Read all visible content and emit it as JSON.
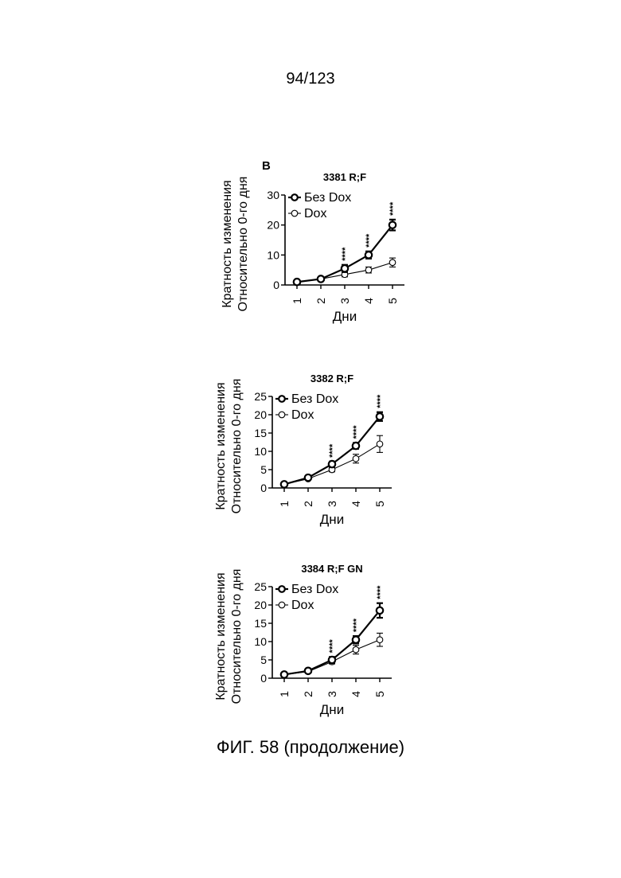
{
  "page": {
    "number": "94/123",
    "panel_letter": "B",
    "caption": "ФИГ. 58 (продолжение)"
  },
  "chart_data": [
    {
      "type": "line",
      "title": "3381 R;F",
      "xlabel": "Дни",
      "ylabel_line1": "Кратность изменения",
      "ylabel_line2": "Относительно 0-го дня",
      "x": [
        1,
        2,
        3,
        4,
        5
      ],
      "xlim": [
        0.5,
        5.5
      ],
      "ylim": [
        0,
        30
      ],
      "yticks": [
        0,
        10,
        20,
        30
      ],
      "series": [
        {
          "name": "Без Dox",
          "marker": "open-circle-bold",
          "values": [
            1,
            2,
            5.5,
            10,
            20
          ],
          "errors": [
            0.3,
            0.4,
            1.2,
            1.2,
            1.8
          ]
        },
        {
          "name": "Dox",
          "marker": "open-circle",
          "values": [
            1,
            2,
            3.5,
            5,
            7.5
          ],
          "errors": [
            0.2,
            0.3,
            0.8,
            1.0,
            1.5
          ]
        }
      ],
      "annotations": [
        {
          "x": 3,
          "text": "****"
        },
        {
          "x": 4,
          "text": "****"
        },
        {
          "x": 5,
          "text": "****"
        }
      ]
    },
    {
      "type": "line",
      "title": "3382 R;F",
      "xlabel": "Дни",
      "ylabel_line1": "Кратность изменения",
      "ylabel_line2": "Относительно 0-го дня",
      "x": [
        1,
        2,
        3,
        4,
        5
      ],
      "xlim": [
        0.5,
        5.5
      ],
      "ylim": [
        0,
        25
      ],
      "yticks": [
        0,
        5,
        10,
        15,
        20,
        25
      ],
      "series": [
        {
          "name": "Без Dox",
          "marker": "open-circle-bold",
          "values": [
            1,
            2.8,
            6.5,
            11.5,
            19.5
          ],
          "errors": [
            0.2,
            0.4,
            0.7,
            0.8,
            1.2
          ]
        },
        {
          "name": "Dox",
          "marker": "open-circle",
          "values": [
            1,
            2.5,
            5,
            8,
            12
          ],
          "errors": [
            0.2,
            0.3,
            0.6,
            1.2,
            2.3
          ]
        }
      ],
      "annotations": [
        {
          "x": 3,
          "text": "****"
        },
        {
          "x": 4,
          "text": "****"
        },
        {
          "x": 5,
          "text": "****"
        }
      ]
    },
    {
      "type": "line",
      "title": "3384 R;F GN",
      "xlabel": "Дни",
      "ylabel_line1": "Кратность изменения",
      "ylabel_line2": "Относительно 0-го дня",
      "x": [
        1,
        2,
        3,
        4,
        5
      ],
      "xlim": [
        0.5,
        5.5
      ],
      "ylim": [
        0,
        25
      ],
      "yticks": [
        0,
        5,
        10,
        15,
        20,
        25
      ],
      "series": [
        {
          "name": "Без Dox",
          "marker": "open-circle-bold",
          "values": [
            1,
            2,
            5,
            10.5,
            18.5
          ],
          "errors": [
            0.2,
            0.3,
            0.8,
            1.0,
            2.0
          ]
        },
        {
          "name": "Dox",
          "marker": "open-circle",
          "values": [
            1,
            1.8,
            4.5,
            7.8,
            10.5
          ],
          "errors": [
            0.2,
            0.3,
            0.6,
            1.2,
            1.8
          ]
        }
      ],
      "annotations": [
        {
          "x": 3,
          "text": "****"
        },
        {
          "x": 4,
          "text": "****"
        },
        {
          "x": 5,
          "text": "****"
        }
      ]
    }
  ]
}
